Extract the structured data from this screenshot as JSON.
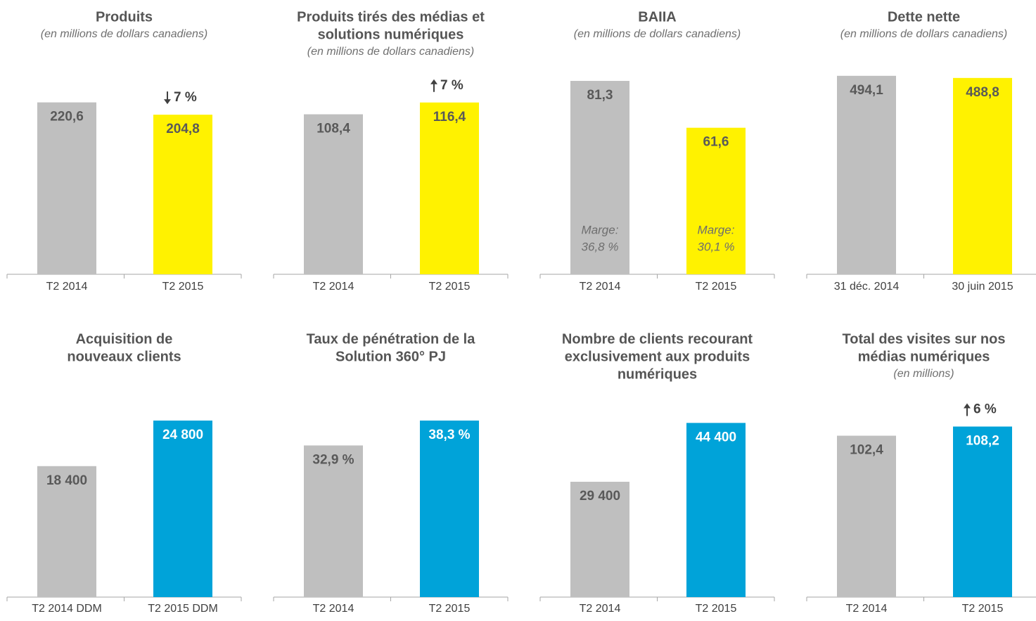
{
  "colors": {
    "prev": "#bfbfbf",
    "yellow": "#fff200",
    "blue": "#00a3d9",
    "dark_text": "#595959",
    "white_text": "#ffffff"
  },
  "chart_data": [
    {
      "type": "bar",
      "title": [
        "Produits"
      ],
      "subtitle": "(en millions de dollars canadiens)",
      "categories": [
        "T2 2014",
        "T2 2015"
      ],
      "values": [
        220.6,
        204.8
      ],
      "value_labels": [
        "220,6",
        "204,8"
      ],
      "colors": [
        "prev",
        "yellow"
      ],
      "change": {
        "label": "7 %",
        "direction": "down"
      },
      "ylim": [
        0,
        250
      ]
    },
    {
      "type": "bar",
      "title": [
        "Produits tirés des médias et",
        "solutions numériques"
      ],
      "subtitle": "(en millions de dollars canadiens)",
      "categories": [
        "T2 2014",
        "T2 2015"
      ],
      "values": [
        108.4,
        116.4
      ],
      "value_labels": [
        "108,4",
        "116,4"
      ],
      "colors": [
        "prev",
        "yellow"
      ],
      "change": {
        "label": "7 %",
        "direction": "up"
      },
      "ylim": [
        0,
        132
      ]
    },
    {
      "type": "bar",
      "title": [
        "BAIIA"
      ],
      "subtitle": "(en millions de dollars canadiens)",
      "categories": [
        "T2 2014",
        "T2 2015"
      ],
      "values": [
        81.3,
        61.6
      ],
      "value_labels": [
        "81,3",
        "61,6"
      ],
      "colors": [
        "prev",
        "yellow"
      ],
      "notes": [
        [
          "Marge:",
          "36,8 %"
        ],
        [
          "Marge:",
          "30,1 %"
        ]
      ],
      "ylim": [
        0,
        81.9
      ]
    },
    {
      "type": "bar",
      "title": [
        "Dette nette"
      ],
      "subtitle": "(en millions de dollars canadiens)",
      "categories": [
        "31 déc. 2014",
        "30 juin 2015"
      ],
      "values": [
        494.1,
        488.8
      ],
      "value_labels": [
        "494,1",
        "488,8"
      ],
      "colors": [
        "prev",
        "yellow"
      ],
      "ylim": [
        0,
        485
      ]
    },
    {
      "type": "bar",
      "title": [
        "Acquisition de",
        "nouveaux clients"
      ],
      "subtitle": "",
      "categories": [
        "T2 2014 DDM",
        "T2 2015 DDM"
      ],
      "values": [
        18400,
        24800
      ],
      "value_labels": [
        "18 400",
        "24 800"
      ],
      "colors": [
        "prev",
        "blue"
      ],
      "ylim": [
        0,
        24800
      ]
    },
    {
      "type": "bar",
      "title": [
        "Taux de pénétration de la",
        "Solution 360° PJ"
      ],
      "subtitle": "",
      "categories": [
        "T2 2014",
        "T2 2015"
      ],
      "values": [
        32.9,
        38.3
      ],
      "value_labels": [
        "32,9 %",
        "38,3 %"
      ],
      "colors": [
        "prev",
        "blue"
      ],
      "ylim": [
        0,
        38.3
      ]
    },
    {
      "type": "bar",
      "title": [
        "Nombre de clients recourant",
        "exclusivement aux produits",
        "numériques"
      ],
      "subtitle": "",
      "categories": [
        "T2 2014",
        "T2 2015"
      ],
      "values": [
        29400,
        44400
      ],
      "value_labels": [
        "29 400",
        "44 400"
      ],
      "colors": [
        "prev",
        "blue"
      ],
      "ylim": [
        0,
        45000
      ]
    },
    {
      "type": "bar",
      "title": [
        "Total des visites sur nos",
        "médias numériques"
      ],
      "subtitle": "(en millions)",
      "categories": [
        "T2 2014",
        "T2 2015"
      ],
      "values": [
        102.4,
        108.2
      ],
      "value_labels": [
        "102,4",
        "108,2"
      ],
      "colors": [
        "prev",
        "blue"
      ],
      "change": {
        "label": "6 %",
        "direction": "up"
      },
      "ylim": [
        0,
        112
      ]
    }
  ]
}
